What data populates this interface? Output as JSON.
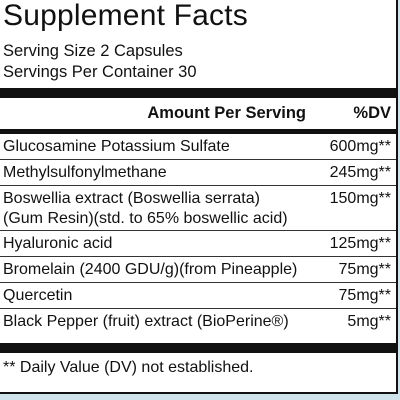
{
  "panel": {
    "title": "Supplement Facts",
    "serving_size": "Serving Size 2 Capsules",
    "servings_per_container": "Servings Per Container 30"
  },
  "header": {
    "amount_label": "Amount Per Serving",
    "dv_label": "%DV"
  },
  "ingredients": [
    {
      "name": "Glucosamine Potassium Sulfate",
      "amount": "600mg**"
    },
    {
      "name": "Methylsulfonylmethane",
      "amount": "245mg**"
    },
    {
      "name": "Boswellia extract (Boswellia serrata)",
      "name_line2": "(Gum Resin)(std. to 65% boswellic acid)",
      "amount": "150mg**"
    },
    {
      "name": "Hyaluronic acid",
      "amount": "125mg**"
    },
    {
      "name": "Bromelain (2400 GDU/g)(from Pineapple)",
      "amount": "75mg**"
    },
    {
      "name": "Quercetin",
      "amount": "75mg**"
    },
    {
      "name": "Black Pepper (fruit) extract (BioPerine®)",
      "amount": "5mg**"
    }
  ],
  "footnote": "** Daily Value (DV) not established.",
  "colors": {
    "background": "#cfe3ea",
    "panel": "#ffffff",
    "ink": "#111111"
  }
}
